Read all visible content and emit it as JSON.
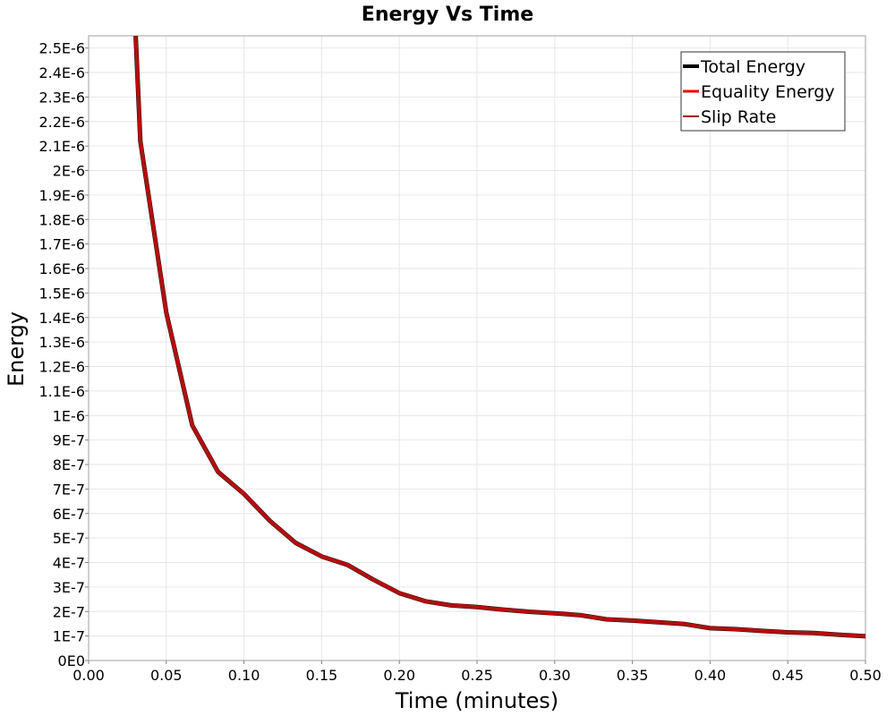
{
  "chart_data": {
    "type": "line",
    "title": "Energy Vs Time",
    "xlabel": "Time (minutes)",
    "ylabel": "Energy",
    "xlim": [
      0,
      0.5
    ],
    "ylim": [
      0,
      2.55e-06
    ],
    "grid": true,
    "legend_position": "top-right",
    "x_ticks": [
      "0.00",
      "0.05",
      "0.10",
      "0.15",
      "0.20",
      "0.25",
      "0.30",
      "0.35",
      "0.40",
      "0.45",
      "0.50"
    ],
    "x_tick_values": [
      0,
      0.05,
      0.1,
      0.15,
      0.2,
      0.25,
      0.3,
      0.35,
      0.4,
      0.45,
      0.5
    ],
    "y_ticks": [
      "0E0",
      "1E-7",
      "2E-7",
      "3E-7",
      "4E-7",
      "5E-7",
      "6E-7",
      "7E-7",
      "8E-7",
      "9E-7",
      "1E-6",
      "1.1E-6",
      "1.2E-6",
      "1.3E-6",
      "1.4E-6",
      "1.5E-6",
      "1.6E-6",
      "1.7E-6",
      "1.8E-6",
      "1.9E-6",
      "2E-6",
      "2.1E-6",
      "2.2E-6",
      "2.3E-6",
      "2.4E-6",
      "2.5E-6"
    ],
    "y_tick_values": [
      0,
      1e-07,
      2e-07,
      3e-07,
      4e-07,
      5e-07,
      6e-07,
      7e-07,
      8e-07,
      9e-07,
      1e-06,
      1.1e-06,
      1.2e-06,
      1.3e-06,
      1.4e-06,
      1.5e-06,
      1.6e-06,
      1.7e-06,
      1.8e-06,
      1.9e-06,
      2e-06,
      2.1e-06,
      2.2e-06,
      2.3e-06,
      2.4e-06,
      2.5e-06
    ],
    "x": [
      0.0303,
      0.0333,
      0.05,
      0.0667,
      0.0833,
      0.1,
      0.1167,
      0.1333,
      0.15,
      0.1667,
      0.1833,
      0.2,
      0.2167,
      0.2333,
      0.25,
      0.2667,
      0.2833,
      0.3,
      0.3167,
      0.3333,
      0.35,
      0.3667,
      0.3833,
      0.4,
      0.4167,
      0.4333,
      0.45,
      0.4667,
      0.4833,
      0.5
    ],
    "series": [
      {
        "name": "Total Energy",
        "color": "#000000",
        "values": [
          2.55e-06,
          2.12e-06,
          1.42e-06,
          9.6e-07,
          7.7e-07,
          6.8e-07,
          5.7e-07,
          4.8e-07,
          4.25e-07,
          3.9e-07,
          3.3e-07,
          2.75e-07,
          2.42e-07,
          2.25e-07,
          2.18e-07,
          2.08e-07,
          1.99e-07,
          1.93e-07,
          1.85e-07,
          1.68e-07,
          1.63e-07,
          1.56e-07,
          1.49e-07,
          1.32e-07,
          1.28e-07,
          1.21e-07,
          1.15e-07,
          1.12e-07,
          1.05e-07,
          9.9e-08
        ]
      },
      {
        "name": "Equality Energy",
        "color": "#ee0000",
        "values": [
          2.55e-06,
          2.12e-06,
          1.42e-06,
          9.6e-07,
          7.7e-07,
          6.8e-07,
          5.7e-07,
          4.8e-07,
          4.25e-07,
          3.9e-07,
          3.3e-07,
          2.75e-07,
          2.42e-07,
          2.25e-07,
          2.18e-07,
          2.08e-07,
          1.99e-07,
          1.93e-07,
          1.85e-07,
          1.68e-07,
          1.63e-07,
          1.56e-07,
          1.49e-07,
          1.32e-07,
          1.28e-07,
          1.21e-07,
          1.15e-07,
          1.12e-07,
          1.05e-07,
          9.9e-08
        ]
      },
      {
        "name": "Slip Rate",
        "color": "#aa1111",
        "values": [
          2.55e-06,
          2.12e-06,
          1.42e-06,
          9.6e-07,
          7.7e-07,
          6.8e-07,
          5.7e-07,
          4.8e-07,
          4.25e-07,
          3.9e-07,
          3.3e-07,
          2.75e-07,
          2.42e-07,
          2.25e-07,
          2.18e-07,
          2.08e-07,
          1.99e-07,
          1.93e-07,
          1.85e-07,
          1.68e-07,
          1.63e-07,
          1.56e-07,
          1.49e-07,
          1.32e-07,
          1.28e-07,
          1.21e-07,
          1.15e-07,
          1.12e-07,
          1.05e-07,
          9.9e-08
        ]
      }
    ]
  }
}
